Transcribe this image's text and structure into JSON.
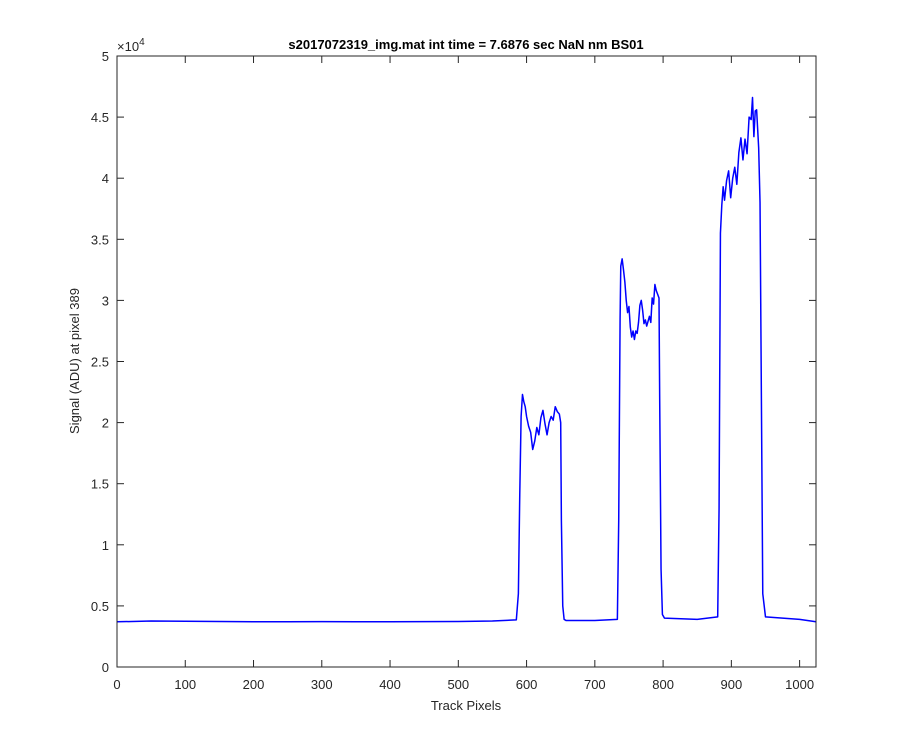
{
  "chart_data": {
    "type": "line",
    "title": "s2017072319_img.mat int time = 7.6876 sec  NaN nm BS01",
    "xlabel": "Track Pixels",
    "ylabel": "Signal (ADU) at pixel 389",
    "xlim": [
      0,
      1024
    ],
    "ylim": [
      0,
      50000
    ],
    "x_ticks": [
      0,
      100,
      200,
      300,
      400,
      500,
      600,
      700,
      800,
      900,
      1000
    ],
    "y_ticks": [
      0,
      5000,
      10000,
      15000,
      20000,
      25000,
      30000,
      35000,
      40000,
      45000,
      50000
    ],
    "y_tick_labels": [
      "0",
      "0.5",
      "1",
      "1.5",
      "2",
      "2.5",
      "3",
      "3.5",
      "4",
      "4.5",
      "5"
    ],
    "y_exponent_label": "×10",
    "y_exponent_power": "4",
    "grid": false,
    "series": [
      {
        "color": "#0000ff",
        "x": [
          0,
          50,
          100,
          150,
          200,
          250,
          300,
          350,
          400,
          450,
          500,
          550,
          585,
          588,
          590,
          592,
          594,
          596,
          598,
          600,
          603,
          606,
          609,
          612,
          615,
          618,
          621,
          624,
          627,
          630,
          633,
          636,
          639,
          642,
          645,
          648,
          650,
          651,
          653,
          655,
          658,
          700,
          733,
          735,
          737,
          738,
          740,
          742,
          744,
          746,
          748,
          750,
          752,
          754,
          756,
          758,
          760,
          762,
          764,
          766,
          768,
          770,
          772,
          774,
          776,
          778,
          780,
          782,
          784,
          786,
          788,
          790,
          792,
          794,
          795,
          797,
          799,
          802,
          850,
          880,
          882,
          884,
          886,
          888,
          890,
          893,
          896,
          899,
          902,
          905,
          908,
          911,
          914,
          917,
          920,
          923,
          926,
          929,
          931,
          933,
          935,
          937,
          940,
          942,
          944,
          946,
          950,
          1000,
          1024
        ],
        "y": [
          3700,
          3760,
          3740,
          3720,
          3700,
          3700,
          3710,
          3700,
          3700,
          3710,
          3720,
          3760,
          3860,
          6000,
          14000,
          20500,
          22300,
          21700,
          21300,
          20500,
          19700,
          19200,
          17800,
          18500,
          19600,
          19000,
          20400,
          21000,
          19900,
          19000,
          20000,
          20500,
          20200,
          21300,
          20900,
          20700,
          20000,
          12000,
          5000,
          3900,
          3800,
          3800,
          3900,
          12000,
          28500,
          32800,
          33400,
          32500,
          31500,
          30000,
          29000,
          29500,
          27800,
          27000,
          27500,
          26800,
          27500,
          27300,
          28200,
          29600,
          30000,
          29200,
          28100,
          28400,
          27900,
          28300,
          28700,
          28200,
          30200,
          29700,
          31300,
          30800,
          30500,
          30200,
          22000,
          8000,
          4300,
          4000,
          3900,
          4100,
          13000,
          35500,
          37800,
          39300,
          38200,
          39800,
          40600,
          38400,
          40000,
          40900,
          39500,
          42100,
          43300,
          41500,
          43200,
          42000,
          45000,
          44800,
          46600,
          43400,
          45500,
          45600,
          42500,
          38000,
          22000,
          6000,
          4100,
          3900,
          3700
        ]
      }
    ]
  }
}
